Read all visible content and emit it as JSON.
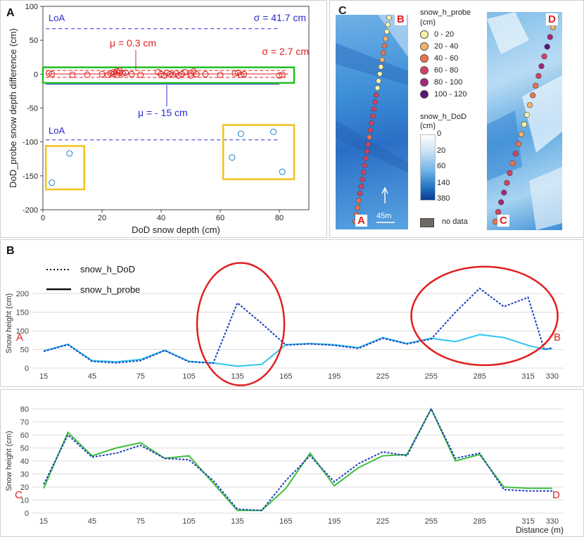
{
  "panel_labels": {
    "a": "A",
    "b": "B",
    "c": "C"
  },
  "colors": {
    "probe_marker": "#e02020",
    "outlier_marker": "#1f7fcf",
    "loa_line": "#2a2acf",
    "green_box": "#22c022",
    "yellow_box": "#f2c21d",
    "dod_line": "#1f3fbf",
    "probe_line": "#2ec4ee",
    "probe_line_cd": "#3fbf3f",
    "ellipse": "#e02020",
    "endpoint_letter": "#e02020"
  },
  "chart_data": [
    {
      "id": "A",
      "type": "scatter",
      "xlabel": "DoD snow depth (cm)",
      "ylabel": "DoD_probe snow depth difference (cm)",
      "xlim": [
        0,
        90
      ],
      "ylim": [
        -200,
        100
      ],
      "xticks": [
        "0",
        "20",
        "40",
        "60",
        "80"
      ],
      "yticks": [
        "100",
        "50",
        "0",
        "-50",
        "-100",
        "-150",
        "-200"
      ],
      "annotations": {
        "loa_top": "LoA",
        "sigma_blue": "σ = 41.7 cm",
        "mu_red": "μ = 0.3 cm",
        "sigma_red": "σ = 2.7 cm",
        "mu_blue": "μ = - 15 cm",
        "loa_bottom": "LoA"
      },
      "lines": {
        "loa_upper": 67,
        "loa_lower": -97,
        "mean_blue": -15,
        "mean_red": 0.3,
        "red_band_upper": 5.4,
        "red_band_lower": -4.8
      },
      "probe_points": {
        "x": [
          2,
          3,
          10,
          15,
          20,
          22,
          23,
          24,
          24,
          25,
          25,
          26,
          26,
          27,
          28,
          30,
          33,
          39,
          40,
          41,
          42,
          43,
          44,
          45,
          46,
          47,
          48,
          50,
          50,
          51,
          52,
          55,
          60,
          65,
          66,
          67,
          68,
          80,
          81
        ],
        "y": [
          1,
          0,
          -1,
          -1,
          0,
          -1,
          1,
          3,
          0,
          4,
          -1,
          2,
          5,
          1,
          2,
          0,
          -1,
          3,
          0,
          -2,
          2,
          0,
          -1,
          1,
          -2,
          0,
          3,
          1,
          -2,
          4,
          0,
          0,
          -1,
          1,
          2,
          -1,
          0,
          -2,
          -1
        ]
      },
      "outlier_points": {
        "x": [
          3,
          9,
          64,
          67,
          78,
          81
        ],
        "y": [
          -160,
          -117,
          -123,
          -88,
          -85,
          -144
        ]
      }
    },
    {
      "id": "B",
      "type": "line",
      "xlabel": "",
      "ylabel": "Snow height (cm)",
      "xlim": [
        8,
        337
      ],
      "ylim": [
        0,
        240
      ],
      "xticks": [
        "15",
        "45",
        "75",
        "105",
        "135",
        "165",
        "195",
        "225",
        "255",
        "285",
        "315",
        "330"
      ],
      "yticks": [
        "0",
        "50",
        "100",
        "150",
        "200"
      ],
      "endpoints": {
        "start": "A",
        "end": "B"
      },
      "series": [
        {
          "name": "snow_h_DoD",
          "x": [
            15,
            30,
            45,
            60,
            75,
            90,
            105,
            120,
            135,
            150,
            165,
            180,
            195,
            210,
            225,
            240,
            255,
            270,
            285,
            300,
            315,
            325,
            330
          ],
          "values": [
            45,
            63,
            18,
            14,
            20,
            47,
            17,
            13,
            175,
            120,
            62,
            65,
            61,
            53,
            80,
            65,
            78,
            150,
            214,
            165,
            190,
            50,
            54
          ]
        },
        {
          "name": "snow_h_probe",
          "x": [
            15,
            30,
            45,
            60,
            75,
            90,
            105,
            120,
            135,
            150,
            165,
            180,
            195,
            210,
            225,
            240,
            255,
            270,
            285,
            300,
            315,
            325,
            330
          ],
          "values": [
            46,
            64,
            20,
            17,
            23,
            48,
            18,
            14,
            5,
            10,
            63,
            66,
            63,
            55,
            82,
            66,
            80,
            71,
            90,
            82,
            61,
            50,
            53
          ]
        }
      ]
    },
    {
      "id": "CD",
      "type": "line",
      "xlabel": "Distance (m)",
      "ylabel": "Snow height (cm)",
      "xlim": [
        8,
        337
      ],
      "ylim": [
        0,
        80
      ],
      "xticks": [
        "15",
        "45",
        "75",
        "105",
        "135",
        "165",
        "195",
        "225",
        "255",
        "285",
        "315",
        "330"
      ],
      "yticks": [
        "0",
        "10",
        "20",
        "30",
        "40",
        "50",
        "60",
        "70",
        "80"
      ],
      "endpoints": {
        "start": "C",
        "end": "D"
      },
      "series": [
        {
          "name": "snow_h_DoD",
          "x": [
            15,
            30,
            45,
            60,
            75,
            90,
            105,
            120,
            135,
            150,
            165,
            180,
            195,
            210,
            225,
            240,
            255,
            270,
            285,
            300,
            315,
            330
          ],
          "values": [
            22,
            60,
            43,
            46,
            52,
            42,
            41,
            25,
            3,
            2,
            25,
            44,
            24,
            38,
            47,
            44,
            80,
            42,
            46,
            18,
            17,
            17
          ]
        },
        {
          "name": "snow_h_probe",
          "x": [
            15,
            30,
            45,
            60,
            75,
            90,
            105,
            120,
            135,
            150,
            165,
            180,
            195,
            210,
            225,
            240,
            255,
            270,
            285,
            300,
            315,
            330
          ],
          "values": [
            19,
            62,
            44,
            50,
            54,
            42,
            44,
            23,
            2,
            2,
            19,
            46,
            21,
            35,
            44,
            45,
            80,
            40,
            45,
            20,
            19,
            19
          ]
        }
      ]
    }
  ],
  "maps": {
    "label_b": "B",
    "label_a": "A",
    "label_d": "D",
    "label_c": "C",
    "scale_bar": "45m",
    "legend_probe_title": "snow_h_probe",
    "legend_probe_unit": "(cm)",
    "legend_probe_items": [
      {
        "label": "0 - 20",
        "color": "#f6f3a8"
      },
      {
        "label": "20 - 40",
        "color": "#f6b16a"
      },
      {
        "label": "40 - 60",
        "color": "#ec7350"
      },
      {
        "label": "60 - 80",
        "color": "#d44065"
      },
      {
        "label": "80 - 100",
        "color": "#a6257a"
      },
      {
        "label": "100 - 120",
        "color": "#5a1576"
      }
    ],
    "legend_dod_title": "snow_h_DoD",
    "legend_dod_unit": "(cm)",
    "legend_dod_ticks": [
      "0",
      "20",
      "60",
      "140",
      "380"
    ],
    "no_data": "no data",
    "no_data_color": "#6e6862"
  }
}
